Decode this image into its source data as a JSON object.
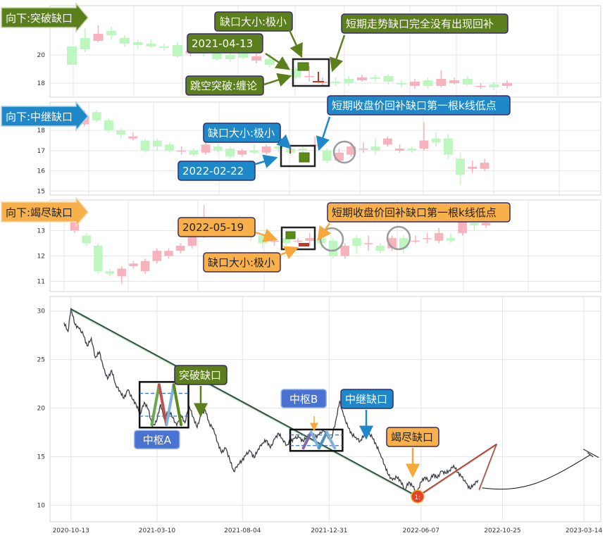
{
  "chart_data": [
    {
      "type": "candlestick",
      "panel": "top",
      "title": "向下:突破缺口",
      "ylim": [
        17,
        23.5
      ],
      "yticks": [
        18,
        20
      ],
      "gap_date": "2021-04-13",
      "candles": [
        [
          20.6,
          19.3,
          20.6,
          19.3
        ],
        [
          21.2,
          20.4,
          21.9,
          20.2
        ],
        [
          21.0,
          21.5,
          22.1,
          20.9
        ],
        [
          21.7,
          21.4,
          22.0,
          21.1
        ],
        [
          21.2,
          20.8,
          21.4,
          20.6
        ],
        [
          20.9,
          20.7,
          21.1,
          20.4
        ],
        [
          20.8,
          20.6,
          21.1,
          20.5
        ],
        [
          20.6,
          20.5,
          20.8,
          20.3
        ],
        [
          20.7,
          19.9,
          20.9,
          19.8
        ],
        [
          20.1,
          20.3,
          20.5,
          19.9
        ],
        [
          20.2,
          20.1,
          20.5,
          19.9
        ],
        [
          20.1,
          19.7,
          20.3,
          19.6
        ],
        [
          20.0,
          19.7,
          20.2,
          19.5
        ],
        [
          20.4,
          19.8,
          20.5,
          19.7
        ],
        [
          19.6,
          19.9,
          20.1,
          19.4
        ],
        [
          19.7,
          19.3,
          20.1,
          19.1
        ],
        [
          19.3,
          19.4,
          19.6,
          19.2
        ],
        [
          19.0,
          18.4,
          19.1,
          18.3
        ],
        [
          18.5,
          18.5,
          19.2,
          18.1
        ],
        [
          18.0,
          18.1,
          18.4,
          17.8
        ],
        [
          18.1,
          18.0,
          18.4,
          17.8
        ],
        [
          18.3,
          18.0,
          18.5,
          17.8
        ],
        [
          18.2,
          18.4,
          18.6,
          18.1
        ],
        [
          18.4,
          18.3,
          18.6,
          18.1
        ],
        [
          18.5,
          18.1,
          18.6,
          17.9
        ],
        [
          18.0,
          17.9,
          18.2,
          17.7
        ],
        [
          17.8,
          18.1,
          18.3,
          17.6
        ],
        [
          18.2,
          17.8,
          18.4,
          17.6
        ],
        [
          17.8,
          18.3,
          18.9,
          17.7
        ],
        [
          18.0,
          18.2,
          18.4,
          17.9
        ],
        [
          18.3,
          17.9,
          18.5,
          17.8
        ],
        [
          17.8,
          17.8,
          18.0,
          17.6
        ],
        [
          17.9,
          17.7,
          18.1,
          17.5
        ],
        [
          17.8,
          18.0,
          18.2,
          17.6
        ]
      ],
      "annotations": {
        "title": "向下:突破缺口",
        "date": "2021-04-13",
        "size": "缺口大小:极小",
        "note": "短期走势缺口完全没有出现回补",
        "type": "跳空突破:缠论"
      }
    },
    {
      "type": "candlestick",
      "panel": "middle",
      "title": "向下:中继缺口",
      "ylim": [
        14.8,
        19.4
      ],
      "yticks": [
        15,
        16,
        17,
        18
      ],
      "gap_date": "2022-02-22",
      "candles": [
        [
          18.3,
          18.7,
          19.0,
          18.2
        ],
        [
          18.9,
          18.5,
          19.0,
          18.4
        ],
        [
          18.5,
          18.0,
          18.6,
          17.9
        ],
        [
          18.0,
          17.8,
          18.1,
          17.6
        ],
        [
          17.6,
          17.7,
          17.9,
          17.5
        ],
        [
          17.5,
          17.0,
          17.6,
          16.9
        ],
        [
          17.5,
          17.2,
          17.6,
          17.0
        ],
        [
          17.3,
          17.0,
          17.4,
          16.9
        ],
        [
          17.0,
          17.0,
          17.2,
          16.8
        ],
        [
          17.0,
          16.8,
          17.1,
          16.7
        ],
        [
          16.9,
          17.3,
          17.4,
          16.8
        ],
        [
          17.2,
          17.0,
          17.3,
          16.9
        ],
        [
          17.1,
          16.7,
          17.2,
          16.6
        ],
        [
          16.8,
          17.0,
          17.1,
          16.7
        ],
        [
          17.0,
          16.9,
          17.3,
          16.8
        ],
        [
          16.9,
          17.2,
          17.3,
          16.8
        ],
        [
          17.2,
          17.1,
          17.3,
          16.9
        ],
        [
          17.1,
          16.9,
          17.2,
          16.8
        ],
        [
          17.1,
          17.0,
          17.2,
          16.9
        ],
        [
          17.3,
          17.3,
          17.7,
          17.1
        ],
        [
          17.0,
          16.5,
          17.1,
          16.4
        ],
        [
          16.5,
          16.9,
          17.1,
          16.4
        ],
        [
          16.8,
          17.2,
          17.4,
          16.7
        ],
        [
          17.1,
          17.1,
          17.4,
          16.9
        ],
        [
          17.2,
          17.0,
          17.6,
          16.8
        ],
        [
          17.3,
          17.6,
          17.7,
          17.2
        ],
        [
          17.0,
          17.1,
          17.3,
          16.9
        ],
        [
          17.1,
          17.0,
          17.2,
          16.9
        ],
        [
          17.1,
          17.5,
          18.4,
          17.0
        ],
        [
          17.6,
          17.4,
          17.9,
          17.2
        ],
        [
          17.6,
          16.8,
          17.8,
          16.6
        ],
        [
          16.6,
          15.8,
          16.9,
          15.3
        ],
        [
          16.1,
          16.2,
          16.5,
          15.9
        ],
        [
          16.1,
          16.4,
          16.6,
          16.0
        ]
      ],
      "annotations": {
        "title": "向下:中继缺口",
        "date": "2022-02-22",
        "size": "缺口大小:极小",
        "note": "短期收盘价回补缺口第一根k线低点"
      }
    },
    {
      "type": "candlestick",
      "panel": "lower",
      "title": "向下:竭尽缺口",
      "ylim": [
        10.6,
        14.2
      ],
      "yticks": [
        11,
        12,
        13
      ],
      "gap_date": "2022-05-19",
      "candles": [
        [
          13.0,
          13.5,
          13.6,
          12.9
        ],
        [
          12.8,
          12.5,
          12.9,
          12.4
        ],
        [
          12.4,
          11.4,
          12.5,
          11.3
        ],
        [
          11.4,
          11.3,
          11.5,
          11.2
        ],
        [
          11.2,
          11.5,
          11.6,
          10.9
        ],
        [
          11.6,
          11.7,
          11.8,
          11.5
        ],
        [
          11.4,
          11.8,
          11.9,
          11.3
        ],
        [
          11.8,
          12.2,
          12.3,
          11.7
        ],
        [
          12.0,
          12.2,
          12.3,
          11.9
        ],
        [
          12.2,
          12.4,
          12.5,
          12.1
        ],
        [
          12.4,
          12.8,
          12.9,
          12.3
        ],
        [
          12.8,
          13.4,
          14.0,
          12.7
        ],
        [
          13.3,
          13.1,
          13.5,
          12.9
        ],
        [
          13.2,
          13.0,
          13.4,
          12.9
        ],
        [
          13.5,
          13.0,
          13.6,
          12.9
        ],
        [
          13.0,
          12.8,
          13.4,
          12.6
        ],
        [
          12.8,
          12.5,
          12.9,
          12.3
        ],
        [
          12.6,
          12.6,
          12.7,
          12.4
        ],
        [
          12.7,
          12.5,
          12.8,
          12.4
        ],
        [
          12.6,
          12.6,
          12.7,
          12.5
        ],
        [
          12.6,
          12.7,
          12.9,
          12.4
        ],
        [
          12.7,
          12.5,
          12.9,
          12.3
        ],
        [
          12.6,
          12.0,
          12.7,
          11.9
        ],
        [
          12.0,
          12.4,
          12.5,
          11.9
        ],
        [
          12.7,
          12.4,
          12.8,
          12.1
        ],
        [
          12.5,
          12.5,
          12.8,
          12.2
        ],
        [
          12.4,
          12.2,
          12.5,
          12.1
        ],
        [
          12.3,
          12.7,
          12.8,
          12.2
        ],
        [
          12.7,
          12.3,
          12.8,
          12.1
        ],
        [
          12.6,
          12.6,
          12.8,
          12.5
        ],
        [
          12.7,
          12.7,
          12.9,
          12.5
        ],
        [
          12.6,
          12.9,
          13.1,
          12.5
        ],
        [
          12.7,
          12.6,
          12.9,
          12.5
        ],
        [
          12.9,
          13.4,
          13.6,
          12.8
        ],
        [
          13.3,
          13.2,
          13.4,
          13.0
        ],
        [
          13.2,
          13.3,
          13.4,
          13.1
        ]
      ],
      "annotations": {
        "title": "向下:竭尽缺口",
        "date": "2022-05-19",
        "size": "缺口大小:极小",
        "note": "短期收盘价回补缺口第一根k线低点"
      }
    },
    {
      "type": "line",
      "panel": "bottom",
      "ylim": [
        8.3,
        31.5
      ],
      "yticks": [
        10,
        15,
        20,
        25,
        30
      ],
      "xticks": [
        "2020-10-13",
        "2021-03-10",
        "2021-08-04",
        "2021-12-31",
        "2022-06-07",
        "2022-10-25",
        "2023-03-14"
      ],
      "x_range": [
        "2020-09-07",
        "2023-04-12"
      ],
      "price_series": [
        [
          "2020-10-01",
          28.8
        ],
        [
          "2020-10-08",
          27.9
        ],
        [
          "2020-10-13",
          30.3
        ],
        [
          "2020-10-20",
          28.6
        ],
        [
          "2020-10-27",
          28.2
        ],
        [
          "2020-11-03",
          27.6
        ],
        [
          "2020-11-10",
          26.4
        ],
        [
          "2020-11-17",
          27.2
        ],
        [
          "2020-11-24",
          25.2
        ],
        [
          "2020-12-01",
          25.8
        ],
        [
          "2020-12-08",
          24.1
        ],
        [
          "2020-12-15",
          23.0
        ],
        [
          "2020-12-22",
          23.9
        ],
        [
          "2020-12-29",
          22.4
        ],
        [
          "2021-01-05",
          21.8
        ],
        [
          "2021-01-12",
          21.0
        ],
        [
          "2021-01-19",
          21.9
        ],
        [
          "2021-01-26",
          21.0
        ],
        [
          "2021-02-02",
          20.4
        ],
        [
          "2021-02-09",
          19.4
        ],
        [
          "2021-02-16",
          20.6
        ],
        [
          "2021-02-23",
          19.9
        ],
        [
          "2021-03-02",
          18.1
        ],
        [
          "2021-03-09",
          18.6
        ],
        [
          "2021-03-16",
          20.4
        ],
        [
          "2021-03-23",
          18.8
        ],
        [
          "2021-03-30",
          19.9
        ],
        [
          "2021-04-06",
          19.0
        ],
        [
          "2021-04-13",
          18.2
        ],
        [
          "2021-04-20",
          19.3
        ],
        [
          "2021-04-27",
          18.5
        ],
        [
          "2021-05-04",
          20.3
        ],
        [
          "2021-05-11",
          19.1
        ],
        [
          "2021-05-18",
          18.0
        ],
        [
          "2021-05-25",
          19.4
        ],
        [
          "2021-06-01",
          19.8
        ],
        [
          "2021-06-08",
          18.4
        ],
        [
          "2021-06-15",
          17.9
        ],
        [
          "2021-06-22",
          16.5
        ],
        [
          "2021-06-29",
          15.4
        ],
        [
          "2021-07-06",
          15.9
        ],
        [
          "2021-07-13",
          14.7
        ],
        [
          "2021-07-20",
          13.5
        ],
        [
          "2021-07-27",
          14.2
        ],
        [
          "2021-08-03",
          14.6
        ],
        [
          "2021-08-10",
          15.2
        ],
        [
          "2021-08-17",
          15.6
        ],
        [
          "2021-08-24",
          14.9
        ],
        [
          "2021-08-31",
          15.8
        ],
        [
          "2021-09-07",
          16.4
        ],
        [
          "2021-09-14",
          16.7
        ],
        [
          "2021-09-21",
          15.9
        ],
        [
          "2021-09-28",
          16.8
        ],
        [
          "2021-10-05",
          17.4
        ],
        [
          "2021-10-12",
          16.8
        ],
        [
          "2021-10-19",
          16.2
        ],
        [
          "2021-10-26",
          16.6
        ],
        [
          "2021-11-02",
          16.9
        ],
        [
          "2021-11-09",
          17.0
        ],
        [
          "2021-11-16",
          16.6
        ],
        [
          "2021-11-23",
          17.1
        ],
        [
          "2021-11-30",
          17.4
        ],
        [
          "2021-12-07",
          17.0
        ],
        [
          "2021-12-14",
          17.3
        ],
        [
          "2021-12-21",
          17.7
        ],
        [
          "2021-12-28",
          17.1
        ],
        [
          "2022-01-04",
          16.9
        ],
        [
          "2022-01-11",
          18.6
        ],
        [
          "2022-01-18",
          20.7
        ],
        [
          "2022-01-25",
          19.2
        ],
        [
          "2022-02-01",
          18.1
        ],
        [
          "2022-02-08",
          17.3
        ],
        [
          "2022-02-15",
          17.0
        ],
        [
          "2022-02-22",
          16.6
        ],
        [
          "2022-03-01",
          17.2
        ],
        [
          "2022-03-08",
          17.5
        ],
        [
          "2022-03-15",
          17.0
        ],
        [
          "2022-03-22",
          16.2
        ],
        [
          "2022-03-29",
          15.3
        ],
        [
          "2022-04-05",
          14.2
        ],
        [
          "2022-04-12",
          13.1
        ],
        [
          "2022-04-19",
          12.6
        ],
        [
          "2022-04-26",
          12.9
        ],
        [
          "2022-05-03",
          12.5
        ],
        [
          "2022-05-10",
          11.6
        ],
        [
          "2022-05-17",
          12.4
        ],
        [
          "2022-05-24",
          11.9
        ],
        [
          "2022-05-31",
          11.3
        ],
        [
          "2022-06-07",
          12.4
        ],
        [
          "2022-06-14",
          12.9
        ],
        [
          "2022-06-21",
          12.5
        ],
        [
          "2022-06-28",
          13.2
        ],
        [
          "2022-07-05",
          12.8
        ],
        [
          "2022-07-12",
          13.5
        ],
        [
          "2022-07-19",
          13.3
        ],
        [
          "2022-07-26",
          13.6
        ],
        [
          "2022-08-02",
          14.1
        ],
        [
          "2022-08-09",
          13.4
        ],
        [
          "2022-08-16",
          12.9
        ],
        [
          "2022-08-23",
          12.3
        ],
        [
          "2022-08-30",
          11.7
        ],
        [
          "2022-09-06",
          12.2
        ],
        [
          "2022-09-13",
          12.6
        ]
      ],
      "trend_lines": [
        {
          "color": "#2f4f3f",
          "points": [
            [
              "2020-10-13",
              30.2
            ],
            [
              "2022-06-01",
              10.9
            ]
          ]
        },
        {
          "color": "#b0413e",
          "points": [
            [
              "2022-06-01",
              10.9
            ],
            [
              "2022-10-15",
              16.3
            ]
          ]
        },
        {
          "color": "#b0413e",
          "points": [
            [
              "2022-09-15",
              11.6
            ],
            [
              "2022-10-15",
              16.3
            ]
          ]
        }
      ],
      "centers": [
        {
          "label": "中枢A",
          "from": "2021-02-08",
          "to": "2021-05-03",
          "low": 18.0,
          "high": 22.7
        },
        {
          "label": "中枢B",
          "from": "2021-10-25",
          "to": "2022-01-23",
          "low": 15.6,
          "high": 17.8
        }
      ],
      "gap_labels": [
        "突破缺口",
        "中继缺口",
        "竭尽缺口"
      ],
      "low_marker": {
        "date": "2022-06-01",
        "value": 10.9,
        "text": "1:"
      },
      "projection_end": [
        "2023-03-25",
        15.2
      ]
    }
  ],
  "colors": {
    "up": "#f6b2bd",
    "down": "#bdf7bf",
    "gap_up": "#c0392b",
    "gap_down": "#5b8c1a",
    "box1": "#5b7f1c",
    "box2": "#1f88c9",
    "box3": "#f7b04a"
  }
}
